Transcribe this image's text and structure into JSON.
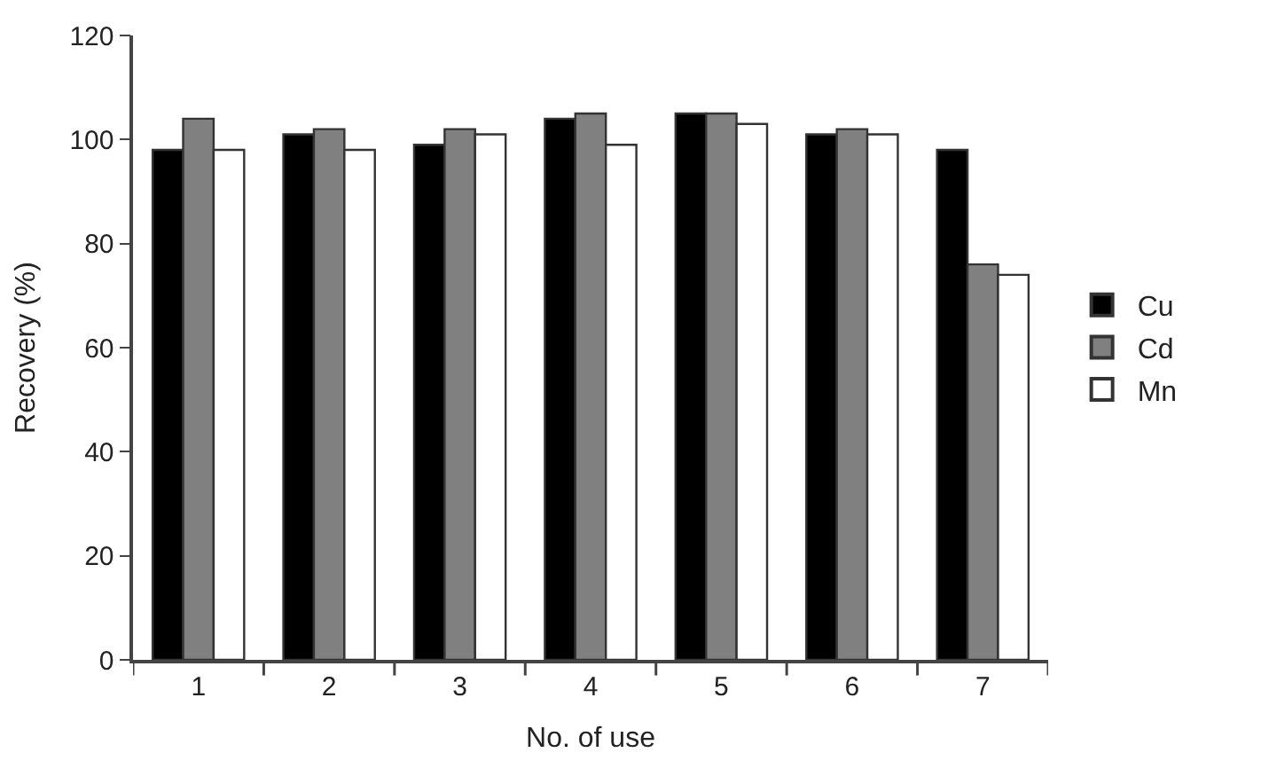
{
  "chart_data": {
    "type": "bar",
    "xlabel": "No. of use",
    "ylabel": "Recovery (%)",
    "categories": [
      "1",
      "2",
      "3",
      "4",
      "5",
      "6",
      "7"
    ],
    "series": [
      {
        "name": "Cu",
        "color": "#000000",
        "values": [
          98,
          101,
          99,
          104,
          105,
          101,
          98
        ]
      },
      {
        "name": "Cd",
        "color": "#808080",
        "values": [
          104,
          102,
          102,
          105,
          105,
          102,
          76
        ]
      },
      {
        "name": "Mn",
        "color": "#ffffff",
        "values": [
          98,
          98,
          101,
          99,
          103,
          101,
          74
        ]
      }
    ],
    "ylim": [
      0,
      120
    ],
    "yticks": [
      0,
      20,
      40,
      60,
      80,
      100,
      120
    ],
    "legend": "right"
  }
}
